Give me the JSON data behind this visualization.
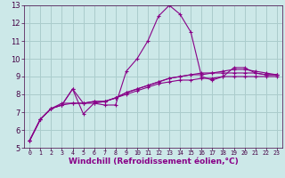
{
  "background_color": "#cce8e8",
  "grid_color": "#aacccc",
  "line_color": "#880088",
  "marker": "+",
  "xlabel": "Windchill (Refroidissement éolien,°C)",
  "xlabel_fontsize": 6.5,
  "tick_fontsize": 6,
  "xlim": [
    -0.5,
    23.5
  ],
  "ylim": [
    5,
    13
  ],
  "yticks": [
    5,
    6,
    7,
    8,
    9,
    10,
    11,
    12,
    13
  ],
  "xticks": [
    0,
    1,
    2,
    3,
    4,
    5,
    6,
    7,
    8,
    9,
    10,
    11,
    12,
    13,
    14,
    15,
    16,
    17,
    18,
    19,
    20,
    21,
    22,
    23
  ],
  "series": [
    [
      5.4,
      6.6,
      7.2,
      7.4,
      8.3,
      6.9,
      7.5,
      7.4,
      7.4,
      9.3,
      10.0,
      11.0,
      12.4,
      13.0,
      12.5,
      11.5,
      9.0,
      8.8,
      9.0,
      9.5,
      9.5,
      9.2,
      9.1,
      9.1
    ],
    [
      5.4,
      6.6,
      7.2,
      7.5,
      7.5,
      7.5,
      7.5,
      7.6,
      7.8,
      8.1,
      8.3,
      8.5,
      8.7,
      8.9,
      9.0,
      9.1,
      9.1,
      9.2,
      9.2,
      9.2,
      9.2,
      9.2,
      9.1,
      9.1
    ],
    [
      5.4,
      6.6,
      7.2,
      7.4,
      7.5,
      7.5,
      7.6,
      7.6,
      7.8,
      8.0,
      8.2,
      8.4,
      8.6,
      8.7,
      8.8,
      8.8,
      8.9,
      8.9,
      9.0,
      9.0,
      9.0,
      9.0,
      9.0,
      9.0
    ],
    [
      5.4,
      6.6,
      7.2,
      7.4,
      8.3,
      7.5,
      7.6,
      7.6,
      7.8,
      8.1,
      8.3,
      8.5,
      8.7,
      8.9,
      9.0,
      9.1,
      9.2,
      9.2,
      9.3,
      9.4,
      9.4,
      9.3,
      9.2,
      9.1
    ]
  ]
}
